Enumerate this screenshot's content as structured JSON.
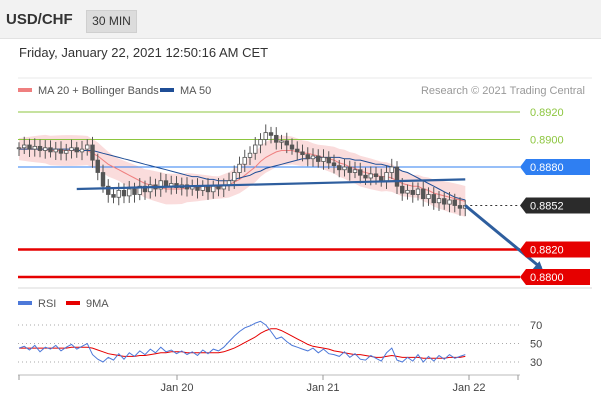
{
  "header": {
    "symbol": "USD/CHF",
    "timeframe": "30 MIN"
  },
  "timestamp": "Friday, January 22, 2021 12:50:16 AM CET",
  "credit": "Research © 2021 Trading Central",
  "colors": {
    "bollinger_fill": "#fadcdc",
    "ma20": "#ef7f7f",
    "ma50": "#1f4e96",
    "trendline": "#2e5e9e",
    "forecast_arrow": "#2e5e9e",
    "candle_up": "#555555",
    "candle_down": "#555555",
    "level_green": "#8dc63f",
    "level_blue": "#2f7ff2",
    "level_red": "#e60000",
    "current_bg": "#2b2b2b",
    "rsi": "#4d79d9",
    "rsi_ma": "#e60000"
  },
  "chart_data": [
    {
      "type": "candlestick",
      "title": "",
      "legend": [
        {
          "label": "MA 20 + Bollinger Bands",
          "color": "#ef7f7f"
        },
        {
          "label": "MA 50",
          "color": "#1f4e96"
        }
      ],
      "legend_position": "top-left",
      "x_ticks": [
        "Jan 20",
        "Jan 21",
        "Jan 22"
      ],
      "ylim": [
        0.8795,
        0.8925
      ],
      "levels": [
        {
          "value": 0.892,
          "label": "0.8920",
          "style": "green-line"
        },
        {
          "value": 0.89,
          "label": "0.8900",
          "style": "green-line"
        },
        {
          "value": 0.888,
          "label": "0.8880",
          "style": "blue-tag"
        },
        {
          "value": 0.8852,
          "label": "0.8852",
          "style": "current-dark-tag"
        },
        {
          "value": 0.882,
          "label": "0.8820",
          "style": "red-tag"
        },
        {
          "value": 0.88,
          "label": "0.8800",
          "style": "red-tag"
        }
      ],
      "close_series": [
        0.8894,
        0.8896,
        0.8893,
        0.8895,
        0.8892,
        0.8894,
        0.8891,
        0.8893,
        0.889,
        0.8892,
        0.8894,
        0.8891,
        0.8893,
        0.8896,
        0.8885,
        0.8876,
        0.8866,
        0.886,
        0.8858,
        0.8863,
        0.8859,
        0.8864,
        0.886,
        0.8866,
        0.8862,
        0.8867,
        0.8864,
        0.887,
        0.8866,
        0.8868,
        0.8865,
        0.8867,
        0.8864,
        0.8866,
        0.8863,
        0.8866,
        0.8862,
        0.8866,
        0.8864,
        0.8867,
        0.887,
        0.8876,
        0.8882,
        0.8887,
        0.889,
        0.8896,
        0.89,
        0.8905,
        0.8903,
        0.8898,
        0.8899,
        0.8896,
        0.8893,
        0.8891,
        0.8889,
        0.8886,
        0.8888,
        0.8884,
        0.8887,
        0.8883,
        0.8881,
        0.8878,
        0.888,
        0.8876,
        0.8878,
        0.8874,
        0.8872,
        0.8875,
        0.8873,
        0.887,
        0.8876,
        0.888,
        0.8866,
        0.8861,
        0.8863,
        0.886,
        0.8864,
        0.8857,
        0.886,
        0.8854,
        0.8857,
        0.8853,
        0.8856,
        0.8852,
        0.885,
        0.8852
      ],
      "ma20_series": [
        0.8893,
        0.8893,
        0.8893,
        0.8893,
        0.8893,
        0.8893,
        0.8892,
        0.8892,
        0.8892,
        0.8892,
        0.8892,
        0.8892,
        0.8892,
        0.8892,
        0.889,
        0.8888,
        0.8885,
        0.8882,
        0.888,
        0.8878,
        0.8876,
        0.8874,
        0.8872,
        0.887,
        0.8868,
        0.8867,
        0.8866,
        0.8865,
        0.8864,
        0.8864,
        0.8864,
        0.8864,
        0.8865,
        0.8865,
        0.8865,
        0.8865,
        0.8865,
        0.8865,
        0.8865,
        0.8866,
        0.8867,
        0.8869,
        0.8871,
        0.8874,
        0.8877,
        0.888,
        0.8884,
        0.8887,
        0.8889,
        0.8891,
        0.8892,
        0.8892,
        0.8892,
        0.8891,
        0.889,
        0.889,
        0.8889,
        0.8888,
        0.8887,
        0.8886,
        0.8885,
        0.8883,
        0.8882,
        0.888,
        0.8879,
        0.8877,
        0.8876,
        0.8875,
        0.8874,
        0.8873,
        0.8873,
        0.8872,
        0.887,
        0.8868,
        0.8867,
        0.8866,
        0.8866,
        0.8864,
        0.8863,
        0.8861,
        0.886,
        0.8859,
        0.8858,
        0.8857,
        0.8856,
        0.8855
      ],
      "ma50_series": [
        0.8893,
        0.8893,
        0.8893,
        0.8893,
        0.8893,
        0.8893,
        0.8893,
        0.8893,
        0.8893,
        0.8893,
        0.8893,
        0.8892,
        0.8892,
        0.8892,
        0.8892,
        0.8891,
        0.889,
        0.8889,
        0.8888,
        0.8887,
        0.8886,
        0.8885,
        0.8884,
        0.8883,
        0.8882,
        0.8881,
        0.888,
        0.8879,
        0.8878,
        0.8877,
        0.8876,
        0.8875,
        0.8874,
        0.8873,
        0.8873,
        0.8872,
        0.8871,
        0.8871,
        0.887,
        0.887,
        0.887,
        0.8871,
        0.8872,
        0.8873,
        0.8874,
        0.8876,
        0.8877,
        0.8879,
        0.888,
        0.8881,
        0.8882,
        0.8883,
        0.8884,
        0.8885,
        0.8886,
        0.8886,
        0.8887,
        0.8887,
        0.8887,
        0.8887,
        0.8887,
        0.8887,
        0.8886,
        0.8886,
        0.8885,
        0.8885,
        0.8884,
        0.8883,
        0.8882,
        0.8882,
        0.8881,
        0.888,
        0.8879,
        0.8877,
        0.8876,
        0.8874,
        0.8872,
        0.887,
        0.8868,
        0.8866,
        0.8864,
        0.8862,
        0.886,
        0.8858,
        0.8857,
        0.8856
      ],
      "bb_width": 0.0008,
      "trendline": {
        "from": {
          "i": 11,
          "value": 0.8864
        },
        "to": {
          "i": 85,
          "value": 0.8871
        }
      },
      "forecast": {
        "from": {
          "i": 85,
          "value": 0.8852
        },
        "to": {
          "i": 100,
          "value": 0.8803
        }
      }
    },
    {
      "type": "line",
      "title": "",
      "legend": [
        {
          "label": "RSI",
          "color": "#4d79d9"
        },
        {
          "label": "9MA",
          "color": "#e60000"
        }
      ],
      "legend_position": "top-left",
      "ylim": [
        20,
        80
      ],
      "y_ticks": [
        70,
        50,
        30
      ],
      "series": [
        {
          "name": "RSI",
          "values": [
            45,
            47,
            43,
            48,
            41,
            46,
            44,
            48,
            42,
            46,
            49,
            44,
            47,
            50,
            38,
            33,
            30,
            35,
            32,
            39,
            33,
            40,
            36,
            42,
            38,
            44,
            40,
            46,
            41,
            43,
            39,
            42,
            38,
            41,
            37,
            43,
            39,
            44,
            42,
            46,
            52,
            58,
            63,
            67,
            69,
            72,
            74,
            70,
            63,
            55,
            57,
            52,
            48,
            46,
            44,
            42,
            45,
            40,
            44,
            39,
            38,
            36,
            41,
            35,
            39,
            33,
            32,
            37,
            34,
            31,
            40,
            45,
            32,
            30,
            35,
            31,
            38,
            30,
            36,
            31,
            37,
            33,
            38,
            34,
            36,
            38
          ]
        },
        {
          "name": "9MA",
          "values": [
            45,
            45,
            45,
            45,
            45,
            45,
            45,
            45,
            45,
            45,
            46,
            46,
            46,
            46,
            45,
            43,
            41,
            39,
            38,
            37,
            36,
            36,
            36,
            37,
            37,
            38,
            39,
            40,
            40,
            41,
            41,
            41,
            40,
            40,
            40,
            40,
            40,
            40,
            40,
            41,
            43,
            45,
            48,
            51,
            54,
            57,
            61,
            64,
            66,
            66,
            64,
            61,
            58,
            55,
            52,
            49,
            47,
            46,
            45,
            44,
            42,
            41,
            40,
            39,
            38,
            38,
            37,
            36,
            35,
            35,
            36,
            37,
            36,
            35,
            35,
            35,
            35,
            34,
            34,
            34,
            34,
            34,
            35,
            35,
            35,
            36
          ]
        }
      ]
    }
  ]
}
